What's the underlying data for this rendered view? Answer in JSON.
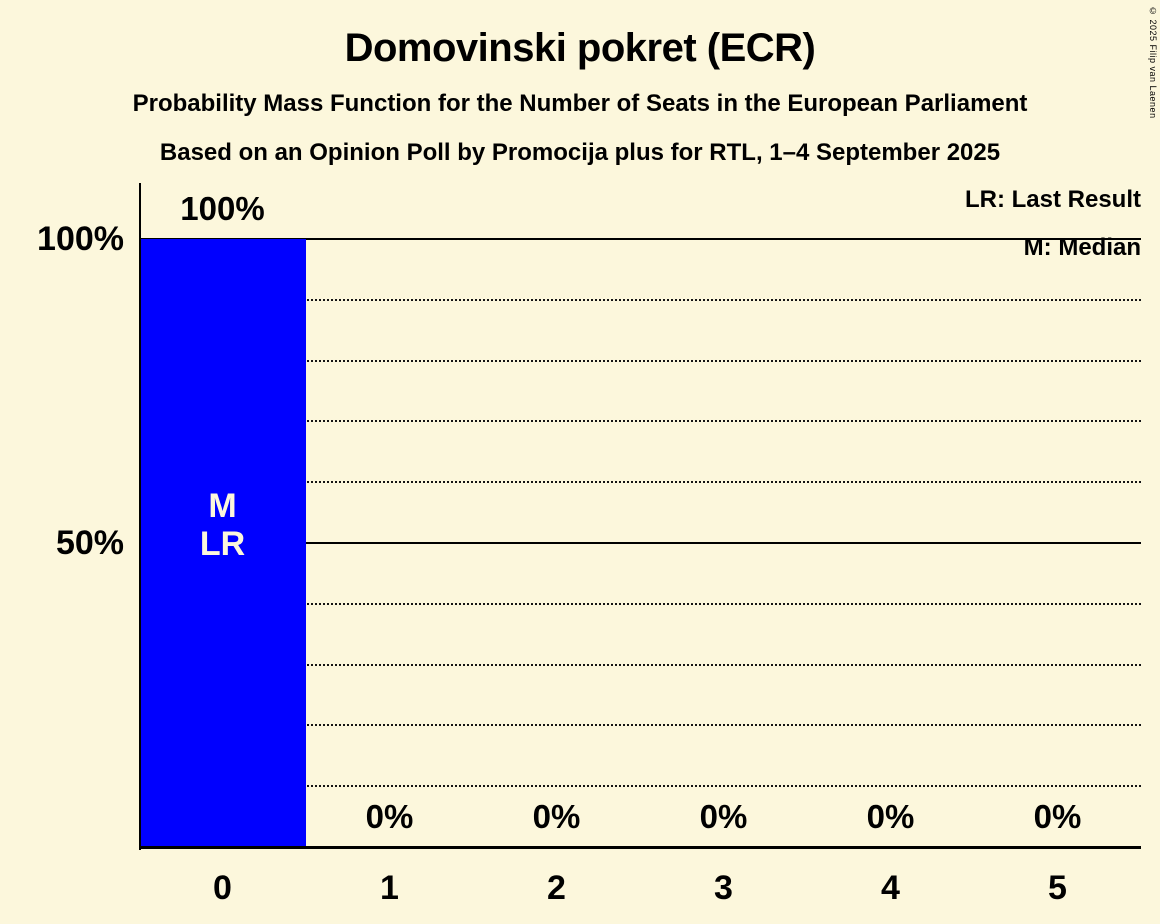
{
  "title": "Domovinski pokret (ECR)",
  "subtitle": "Probability Mass Function for the Number of Seats in the European Parliament",
  "subsubtitle": "Based on an Opinion Poll by Promocija plus for RTL, 1–4 September 2025",
  "copyright": "© 2025 Filip van Laenen",
  "legend": {
    "last_result": "LR: Last Result",
    "median": "M: Median"
  },
  "colors": {
    "background": "#fcf7dc",
    "bar": "#0000ff",
    "text": "#000000",
    "bar_annotation_text": "#fcf7dc"
  },
  "chart_data": {
    "type": "bar",
    "title": "Domovinski pokret (ECR)",
    "subtitle": "Probability Mass Function for the Number of Seats in the European Parliament",
    "source_line": "Based on an Opinion Poll by Promocija plus for RTL, 1–4 September 2025",
    "categories": [
      "0",
      "1",
      "2",
      "3",
      "4",
      "5"
    ],
    "values": [
      100,
      0,
      0,
      0,
      0,
      0
    ],
    "value_labels": [
      "100%",
      "0%",
      "0%",
      "0%",
      "0%",
      "0%"
    ],
    "ylim": [
      0,
      100
    ],
    "yticks": [
      {
        "pct": 100,
        "label": "100%"
      },
      {
        "pct": 50,
        "label": "50%"
      }
    ],
    "gridlines_solid_pct": [
      100,
      50
    ],
    "gridlines_dotted_pct": [
      90,
      80,
      70,
      60,
      40,
      30,
      20,
      10
    ],
    "grid": "horizontal",
    "legend_entries": [
      "LR: Last Result",
      "M: Median"
    ],
    "legend_position": "top-right",
    "median_category": "0",
    "last_result_category": "0",
    "bar_annotation_lines": [
      "M",
      "LR"
    ],
    "annotated_category_index": 0
  }
}
